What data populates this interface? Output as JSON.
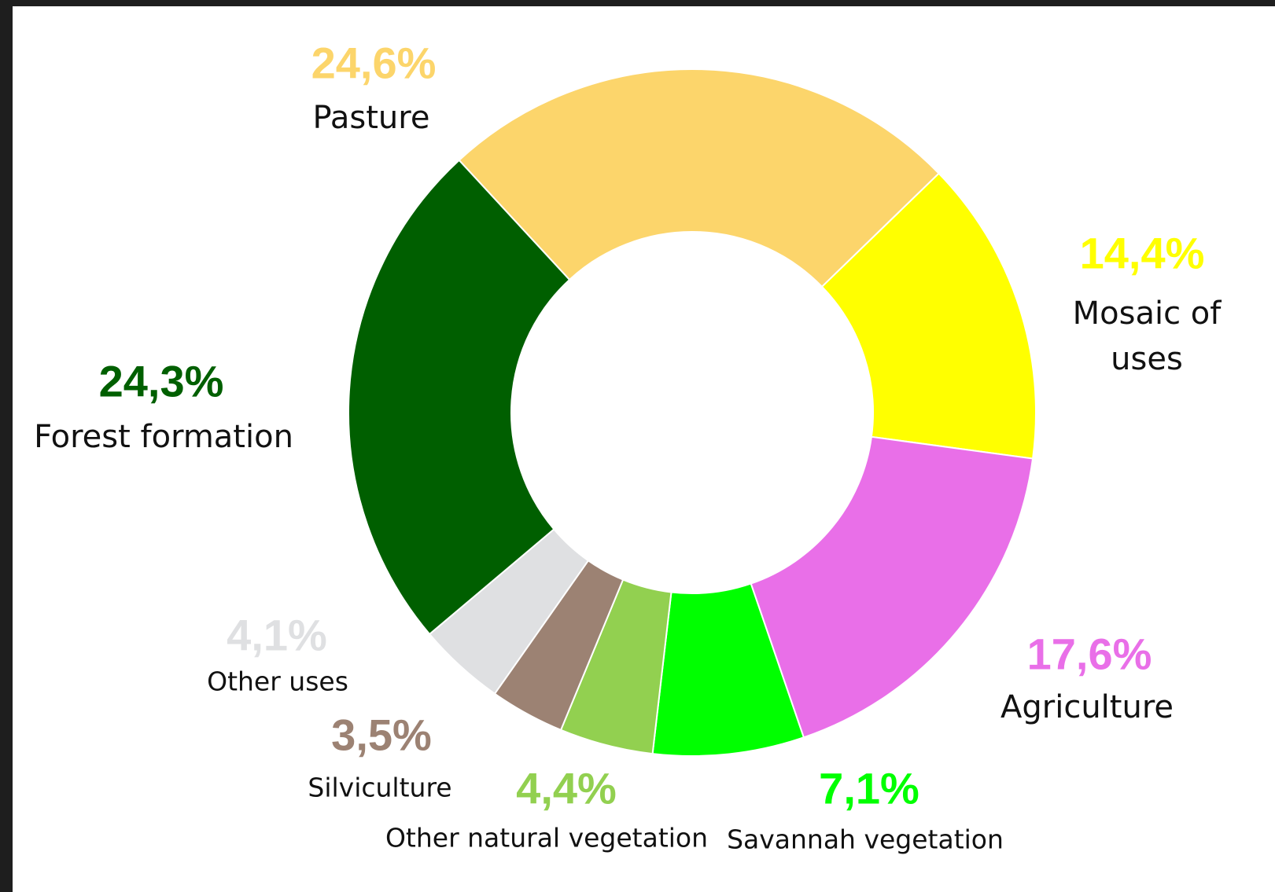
{
  "chart_data": {
    "type": "pie",
    "categories": [
      "Pasture",
      "Mosaic of uses",
      "Agriculture",
      "Savannah vegetation",
      "Other natural vegetation",
      "Silviculture",
      "Other uses",
      "Forest formation"
    ],
    "values": [
      24.6,
      14.4,
      17.6,
      7.1,
      4.4,
      3.5,
      4.1,
      24.3
    ],
    "value_labels": [
      "24,6%",
      "14,4%",
      "17,6%",
      "7,1%",
      "4,4%",
      "3,5%",
      "4,1%",
      "24,3%"
    ],
    "colors": [
      "#fcd56b",
      "#ffff00",
      "#e96fe8",
      "#00ff00",
      "#92d050",
      "#9c8273",
      "#dfe0e2",
      "#005f00"
    ]
  }
}
